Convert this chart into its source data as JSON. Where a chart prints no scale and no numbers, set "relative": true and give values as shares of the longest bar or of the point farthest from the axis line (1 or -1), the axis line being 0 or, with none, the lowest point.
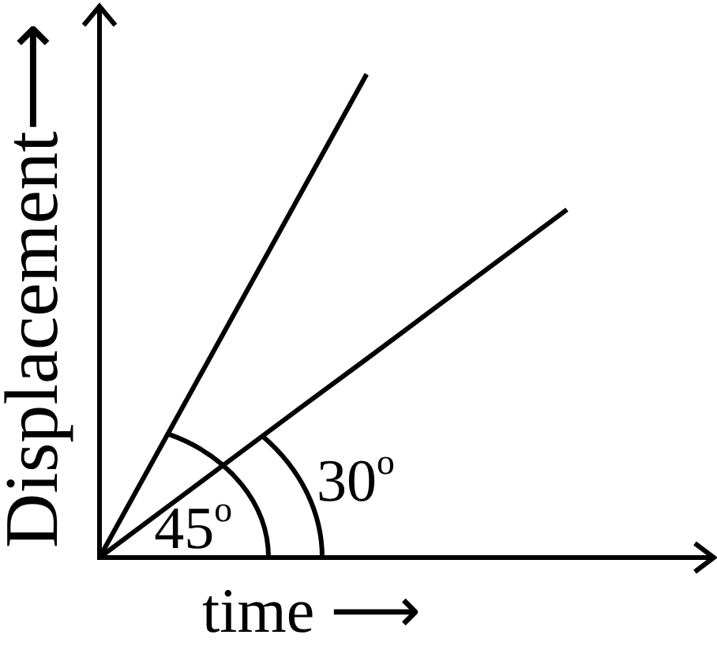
{
  "chart_data": {
    "type": "line",
    "xlabel": "time ⟶",
    "ylabel": "Displacement⟶",
    "relative": true,
    "categories": [
      null,
      null,
      null,
      null,
      null,
      null,
      null,
      null
    ],
    "series": [
      {
        "color": "#000000",
        "values": [
          0,
          0.25,
          0.5,
          0.75,
          1,
          null,
          null,
          null
        ]
      },
      {
        "color": "#000000",
        "values": [
          0,
          0.103,
          0.206,
          0.309,
          0.411,
          0.514,
          0.617,
          0.72
        ]
      }
    ],
    "annotations": [
      "45$^{o}$",
      "30$^{o}$"
    ]
  }
}
